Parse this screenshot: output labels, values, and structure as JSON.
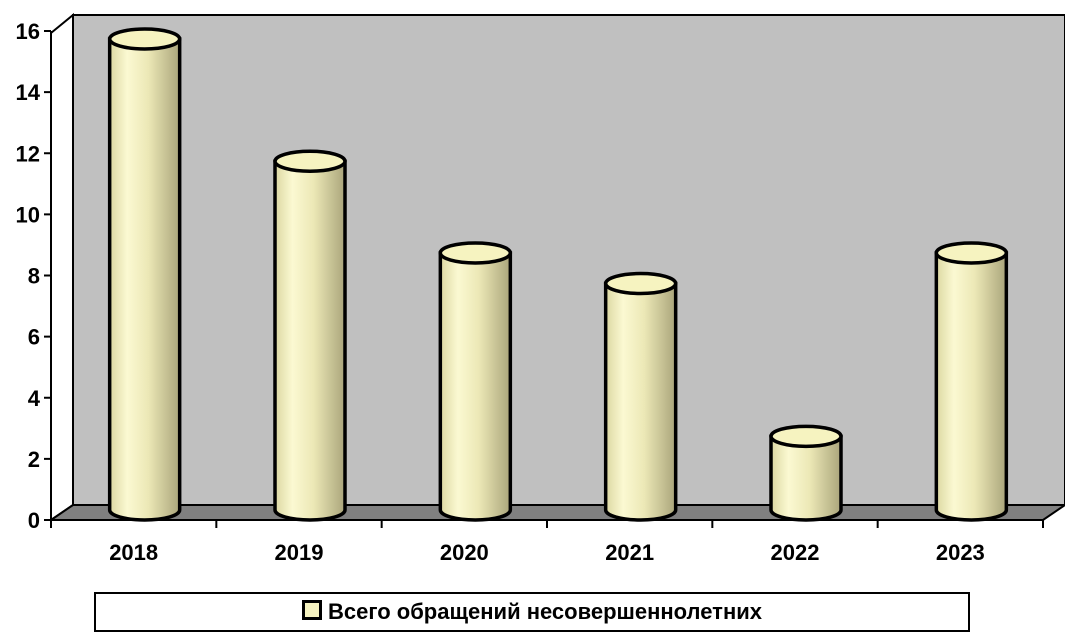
{
  "chart_data": {
    "type": "bar",
    "categories": [
      "2018",
      "2019",
      "2020",
      "2021",
      "2022",
      "2023"
    ],
    "series": [
      {
        "name": "Всего обращений несовершеннолетних",
        "values": [
          16,
          12,
          9,
          8,
          3,
          9
        ]
      }
    ],
    "ylim": [
      0,
      16
    ],
    "yticks": [
      "0",
      "2",
      "4",
      "6",
      "8",
      "10",
      "12",
      "14",
      "16"
    ],
    "grid": false,
    "legend_position": "bottom",
    "colors": {
      "bar_fill": "#f6f3c0",
      "bar_shade": "#b3ae82",
      "wall": "#c0c0c0",
      "floor": "#808080",
      "outline": "#000000"
    }
  },
  "legend": {
    "label": "Всего обращений несовершеннолетних"
  }
}
